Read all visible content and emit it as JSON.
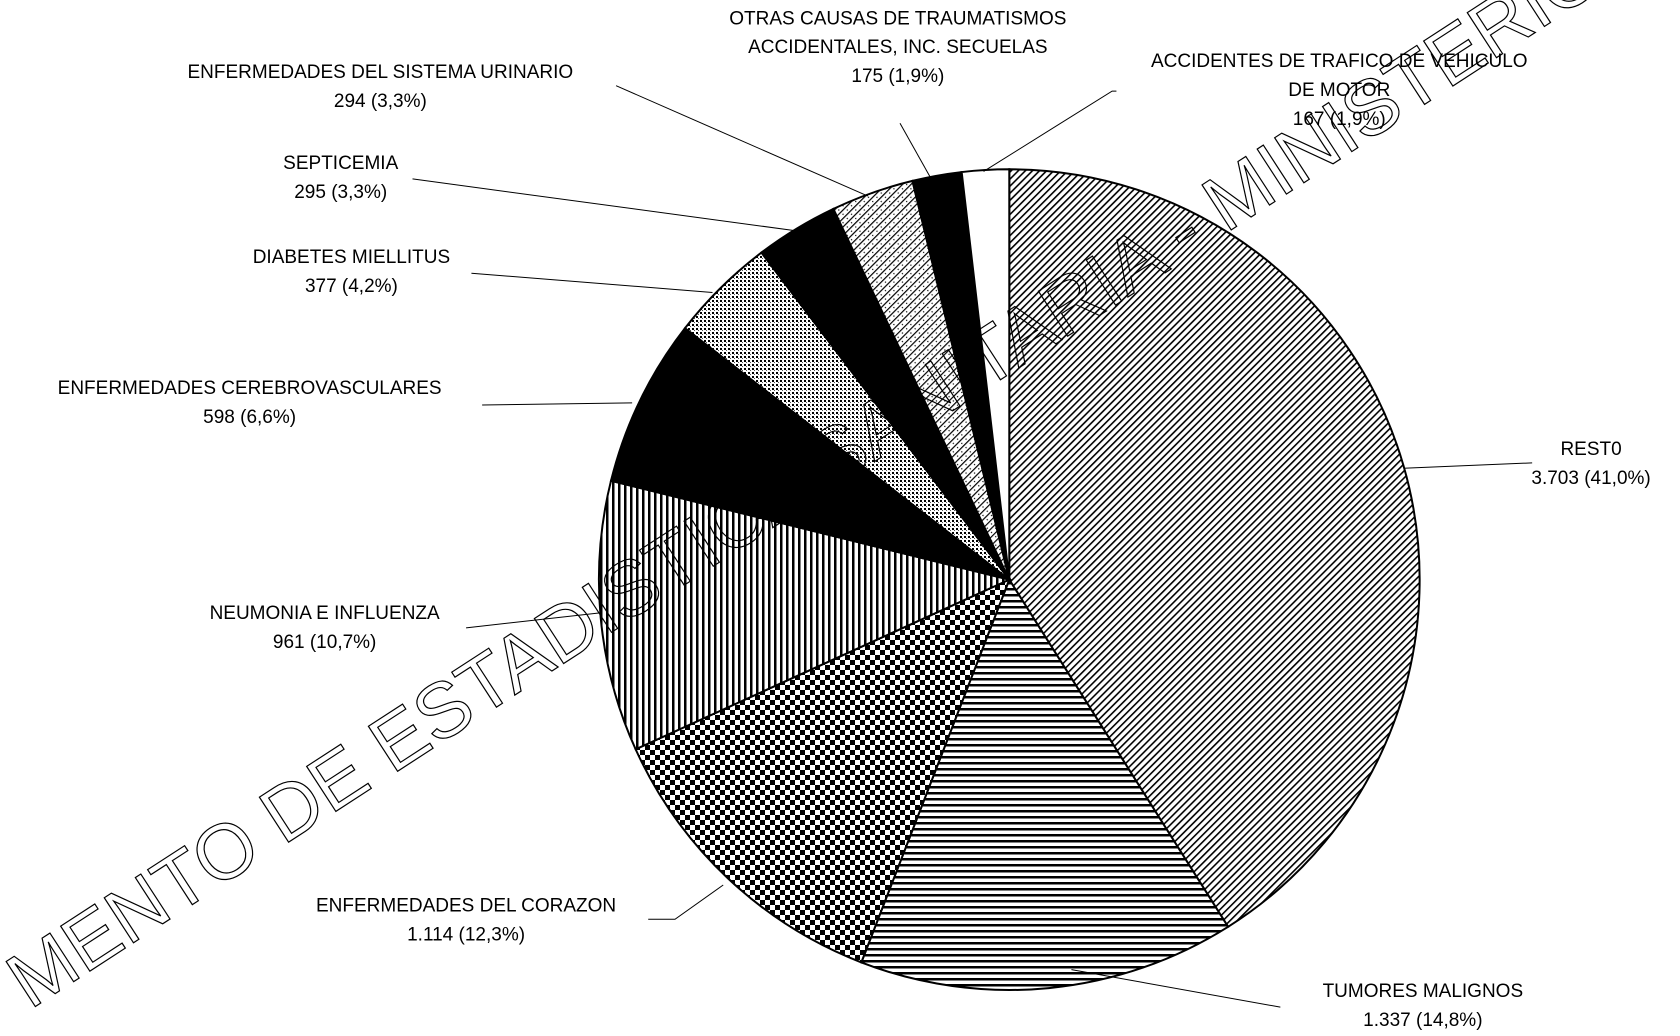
{
  "chart_data": {
    "type": "pie",
    "categories": [
      "REST0",
      "TUMORES MALIGNOS",
      "ENFERMEDADES DEL CORAZON",
      "NEUMONIA E INFLUENZA",
      "ENFERMEDADES CEREBROVASCULARES",
      "DIABETES MIELLITUS",
      "SEPTICEMIA",
      "ENFERMEDADES DEL SISTEMA URINARIO",
      "OTRAS CAUSAS DE TRAUMATISMOS\nACCIDENTALES, INC. SECUELAS",
      "ACCIDENTES DE TRAFICO DE VEHICULO\nDE MOTOR"
    ],
    "values": [
      3703,
      1337,
      1114,
      961,
      598,
      377,
      295,
      294,
      175,
      167
    ],
    "value_labels": [
      "3.703 (41,0%)",
      "1.337 (14,8%)",
      "1.114 (12,3%)",
      "961 (10,7%)",
      "598 (6,6%)",
      "377 (4,2%)",
      "295 (3,3%)",
      "294 (3,3%)",
      "175 (1,9%)",
      "167 (1,9%)"
    ],
    "patterns": [
      "fine-diagonal",
      "horizontal",
      "checker",
      "vertical",
      "solid",
      "crosshatch",
      "solid",
      "dotted-diagonal",
      "solid",
      "white"
    ],
    "watermark": "MENTO DE ESTADISTICA SANITARIA - MINISTERIO DE SALUD - PROVINCIA"
  }
}
